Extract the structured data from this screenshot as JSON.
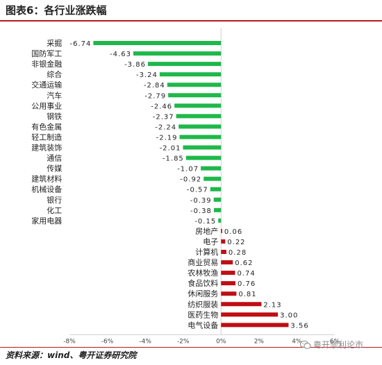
{
  "header": {
    "title": "图表6：各行业涨跌幅"
  },
  "footer": {
    "source": "资料来源：wind、粤开证券研究院",
    "watermark": "粤开崇利论市"
  },
  "colors": {
    "negative": "#1fb84a",
    "positive": "#c00d14",
    "accent": "#b8161c"
  },
  "chart_data": {
    "type": "bar",
    "orientation": "horizontal",
    "title": "",
    "xlabel": "",
    "ylabel": "",
    "categories": [
      "采掘",
      "国防军工",
      "非银金融",
      "综合",
      "交通运输",
      "汽车",
      "公用事业",
      "钢铁",
      "有色金属",
      "轻工制造",
      "建筑装饰",
      "通信",
      "传媒",
      "建筑材料",
      "机械设备",
      "银行",
      "化工",
      "家用电器",
      "房地产",
      "电子",
      "计算机",
      "商业贸易",
      "农林牧渔",
      "食品饮料",
      "休闲服务",
      "纺织服装",
      "医药生物",
      "电气设备"
    ],
    "values": [
      -6.74,
      -4.63,
      -3.86,
      -3.24,
      -2.84,
      -2.79,
      -2.46,
      -2.37,
      -2.24,
      -2.19,
      -2.01,
      -1.85,
      -1.07,
      -0.92,
      -0.57,
      -0.39,
      -0.38,
      -0.15,
      0.06,
      0.22,
      0.28,
      0.62,
      0.74,
      0.76,
      0.81,
      2.13,
      3.0,
      3.56
    ],
    "value_labels": [
      "-6.74",
      "-4.63",
      "-3.86",
      "-3.24",
      "-2.84",
      "-2.79",
      "-2.46",
      "-2.37",
      "-2.24",
      "-2.19",
      "-2.01",
      "-1.85",
      "-1.07",
      "-0.92",
      "-0.57",
      "-0.39",
      "-0.38",
      "-0.15",
      "0.06",
      "0.22",
      "0.28",
      "0.62",
      "0.74",
      "0.76",
      "0.81",
      "2.13",
      "3.00",
      "3.56"
    ],
    "xlim": [
      -8,
      6
    ],
    "xticks": [
      -8,
      -6,
      -4,
      -2,
      0,
      2,
      4,
      6
    ],
    "xtick_labels": [
      "-8%",
      "-6%",
      "-4%",
      "-2%",
      "0%",
      "2%",
      "4%",
      "6%"
    ],
    "grid": false,
    "legend": "none"
  }
}
